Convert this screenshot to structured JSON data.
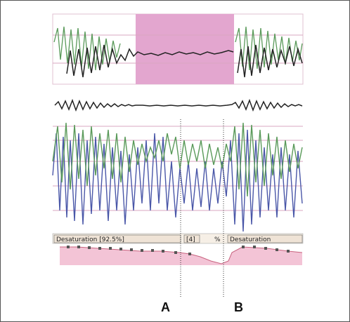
{
  "events": {
    "desat_left": "Desaturation [92.5%]",
    "marker_small": "[4]",
    "marker_tiny": "%",
    "desat_right": "Desaturation"
  },
  "markers": {
    "a_label": "A",
    "b_label": "B"
  },
  "colors": {
    "highlight": "#e3a6cf",
    "green_trace": "#5a9a5a",
    "blue_trace": "#4a57a8",
    "dark_trace": "#222222",
    "event_band": "#f3c4d6"
  }
}
